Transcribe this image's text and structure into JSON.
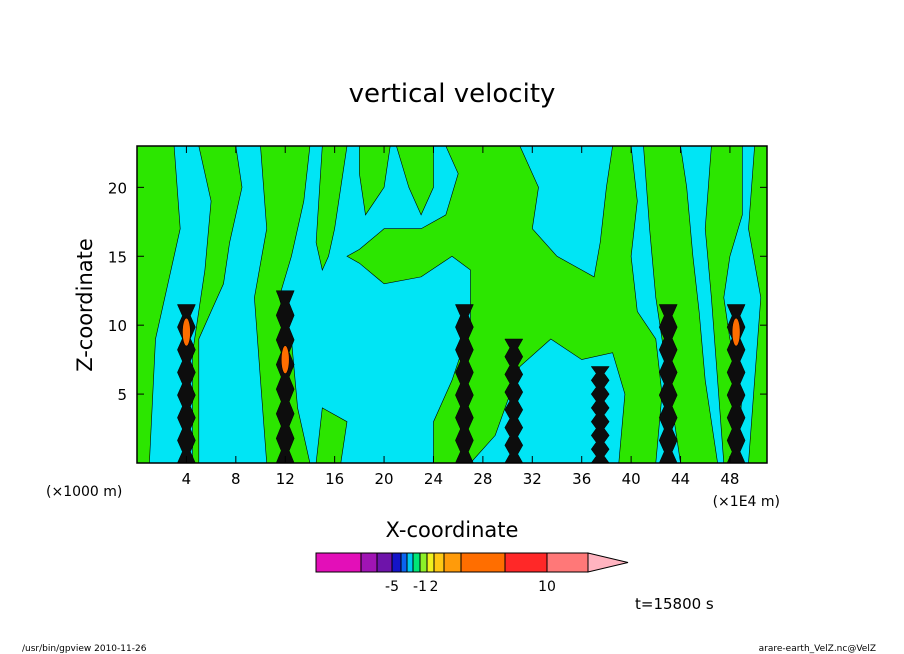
{
  "chart_data": {
    "type": "heatmap",
    "title": "vertical velocity",
    "xlabel": "X-coordinate",
    "ylabel": "Z-coordinate",
    "x_unit_left": "(×1000 m)",
    "x_unit_right": "(×1E4 m)",
    "xlim": [
      0,
      51
    ],
    "ylim": [
      0,
      23
    ],
    "xticks": [
      4,
      8,
      12,
      16,
      20,
      24,
      28,
      32,
      36,
      40,
      44,
      48
    ],
    "yticks": [
      5,
      10,
      15,
      20
    ],
    "colorbar": {
      "colors": [
        "#e30fb8",
        "#a014b4",
        "#6e14aa",
        "#1414c8",
        "#0a64f0",
        "#00c8f0",
        "#00e678",
        "#8cf028",
        "#f0f01e",
        "#ffc814",
        "#ff9b0a",
        "#ff6e00",
        "#ff2828",
        "#ff7878"
      ],
      "extend_color": "#ffb4c0",
      "tick_labels": [
        {
          "label": "-5",
          "index": 2
        },
        {
          "label": "-1",
          "index": 6
        },
        {
          "label": "2",
          "index": 8
        },
        {
          "label": "10",
          "index": 12
        }
      ]
    },
    "field": {
      "background": "#00e5f5",
      "positive": "#2ce600",
      "updraft_core": "#0d0d0d",
      "updraft_max": "#ff6e00",
      "updraft_columns": [
        {
          "x": 4,
          "z_top": 11.5,
          "max_z": 9.5
        },
        {
          "x": 12,
          "z_top": 12.5,
          "max_z": 7.5
        },
        {
          "x": 26.5,
          "z_top": 11.5,
          "max_z": 0
        },
        {
          "x": 30.5,
          "z_top": 9.0,
          "max_z": 0
        },
        {
          "x": 37.5,
          "z_top": 7.0,
          "max_z": 0
        },
        {
          "x": 43,
          "z_top": 11.5,
          "max_z": 0
        },
        {
          "x": 48.5,
          "z_top": 11.5,
          "max_z": 9.5
        }
      ]
    },
    "time_label": "t=15800 s"
  },
  "footer": {
    "left": "/usr/bin/gpview  2010-11-26",
    "right": "arare-earth_VelZ.nc@VelZ"
  }
}
